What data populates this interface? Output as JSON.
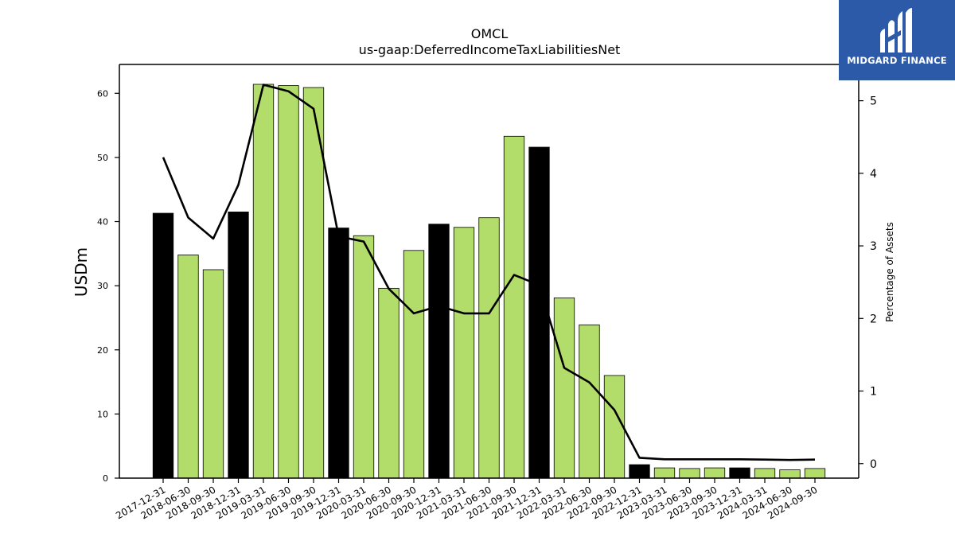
{
  "chart_data": {
    "type": "bar",
    "title": "OMCL",
    "subtitle": "us-gaap:DeferredIncomeTaxLiabilitiesNet",
    "ylabel": "USDm",
    "ylabel_right": "Percentage of Assets",
    "categories": [
      "2017-12-31",
      "2018-06-30",
      "2018-09-30",
      "2018-12-31",
      "2019-03-31",
      "2019-06-30",
      "2019-09-30",
      "2019-12-31",
      "2020-03-31",
      "2020-06-30",
      "2020-09-30",
      "2020-12-31",
      "2021-03-31",
      "2021-06-30",
      "2021-09-30",
      "2021-12-31",
      "2022-03-31",
      "2022-06-30",
      "2022-09-30",
      "2022-12-31",
      "2023-03-31",
      "2023-06-30",
      "2023-09-30",
      "2023-12-31",
      "2024-03-31",
      "2024-06-30",
      "2024-09-30"
    ],
    "series": [
      {
        "type": "bar",
        "values": [
          41.3,
          34.8,
          32.5,
          41.5,
          61.4,
          61.2,
          60.9,
          39.0,
          37.8,
          29.6,
          35.5,
          39.6,
          39.1,
          40.6,
          53.3,
          51.6,
          28.1,
          23.9,
          16.0,
          2.1,
          1.6,
          1.5,
          1.6,
          1.6,
          1.5,
          1.3,
          1.5
        ],
        "colors": [
          "#000000",
          "#b3dd6a",
          "#b3dd6a",
          "#000000",
          "#b3dd6a",
          "#b3dd6a",
          "#b3dd6a",
          "#000000",
          "#b3dd6a",
          "#b3dd6a",
          "#b3dd6a",
          "#000000",
          "#b3dd6a",
          "#b3dd6a",
          "#b3dd6a",
          "#000000",
          "#b3dd6a",
          "#b3dd6a",
          "#b3dd6a",
          "#000000",
          "#b3dd6a",
          "#b3dd6a",
          "#b3dd6a",
          "#000000",
          "#b3dd6a",
          "#b3dd6a",
          "#b3dd6a"
        ]
      },
      {
        "type": "line",
        "axis": "right",
        "color": "#000000",
        "values": [
          4.22,
          3.39,
          3.1,
          3.84,
          5.22,
          5.13,
          4.89,
          3.13,
          3.06,
          2.41,
          2.07,
          2.17,
          2.07,
          2.07,
          2.6,
          2.46,
          1.32,
          1.12,
          0.74,
          0.08,
          0.06,
          0.06,
          0.06,
          0.06,
          0.055,
          0.05,
          0.055
        ]
      }
    ],
    "ylim": [
      0,
      64.5
    ],
    "yticks": [
      0,
      10,
      20,
      30,
      40,
      50,
      60
    ],
    "ylim_right": [
      -0.2,
      5.5
    ],
    "yticks_right": [
      0,
      1,
      2,
      3,
      4,
      5
    ],
    "grid": false,
    "legend": "none"
  },
  "logo": {
    "text": "MIDGARD FINANCE",
    "color": "#2c5aa8"
  }
}
